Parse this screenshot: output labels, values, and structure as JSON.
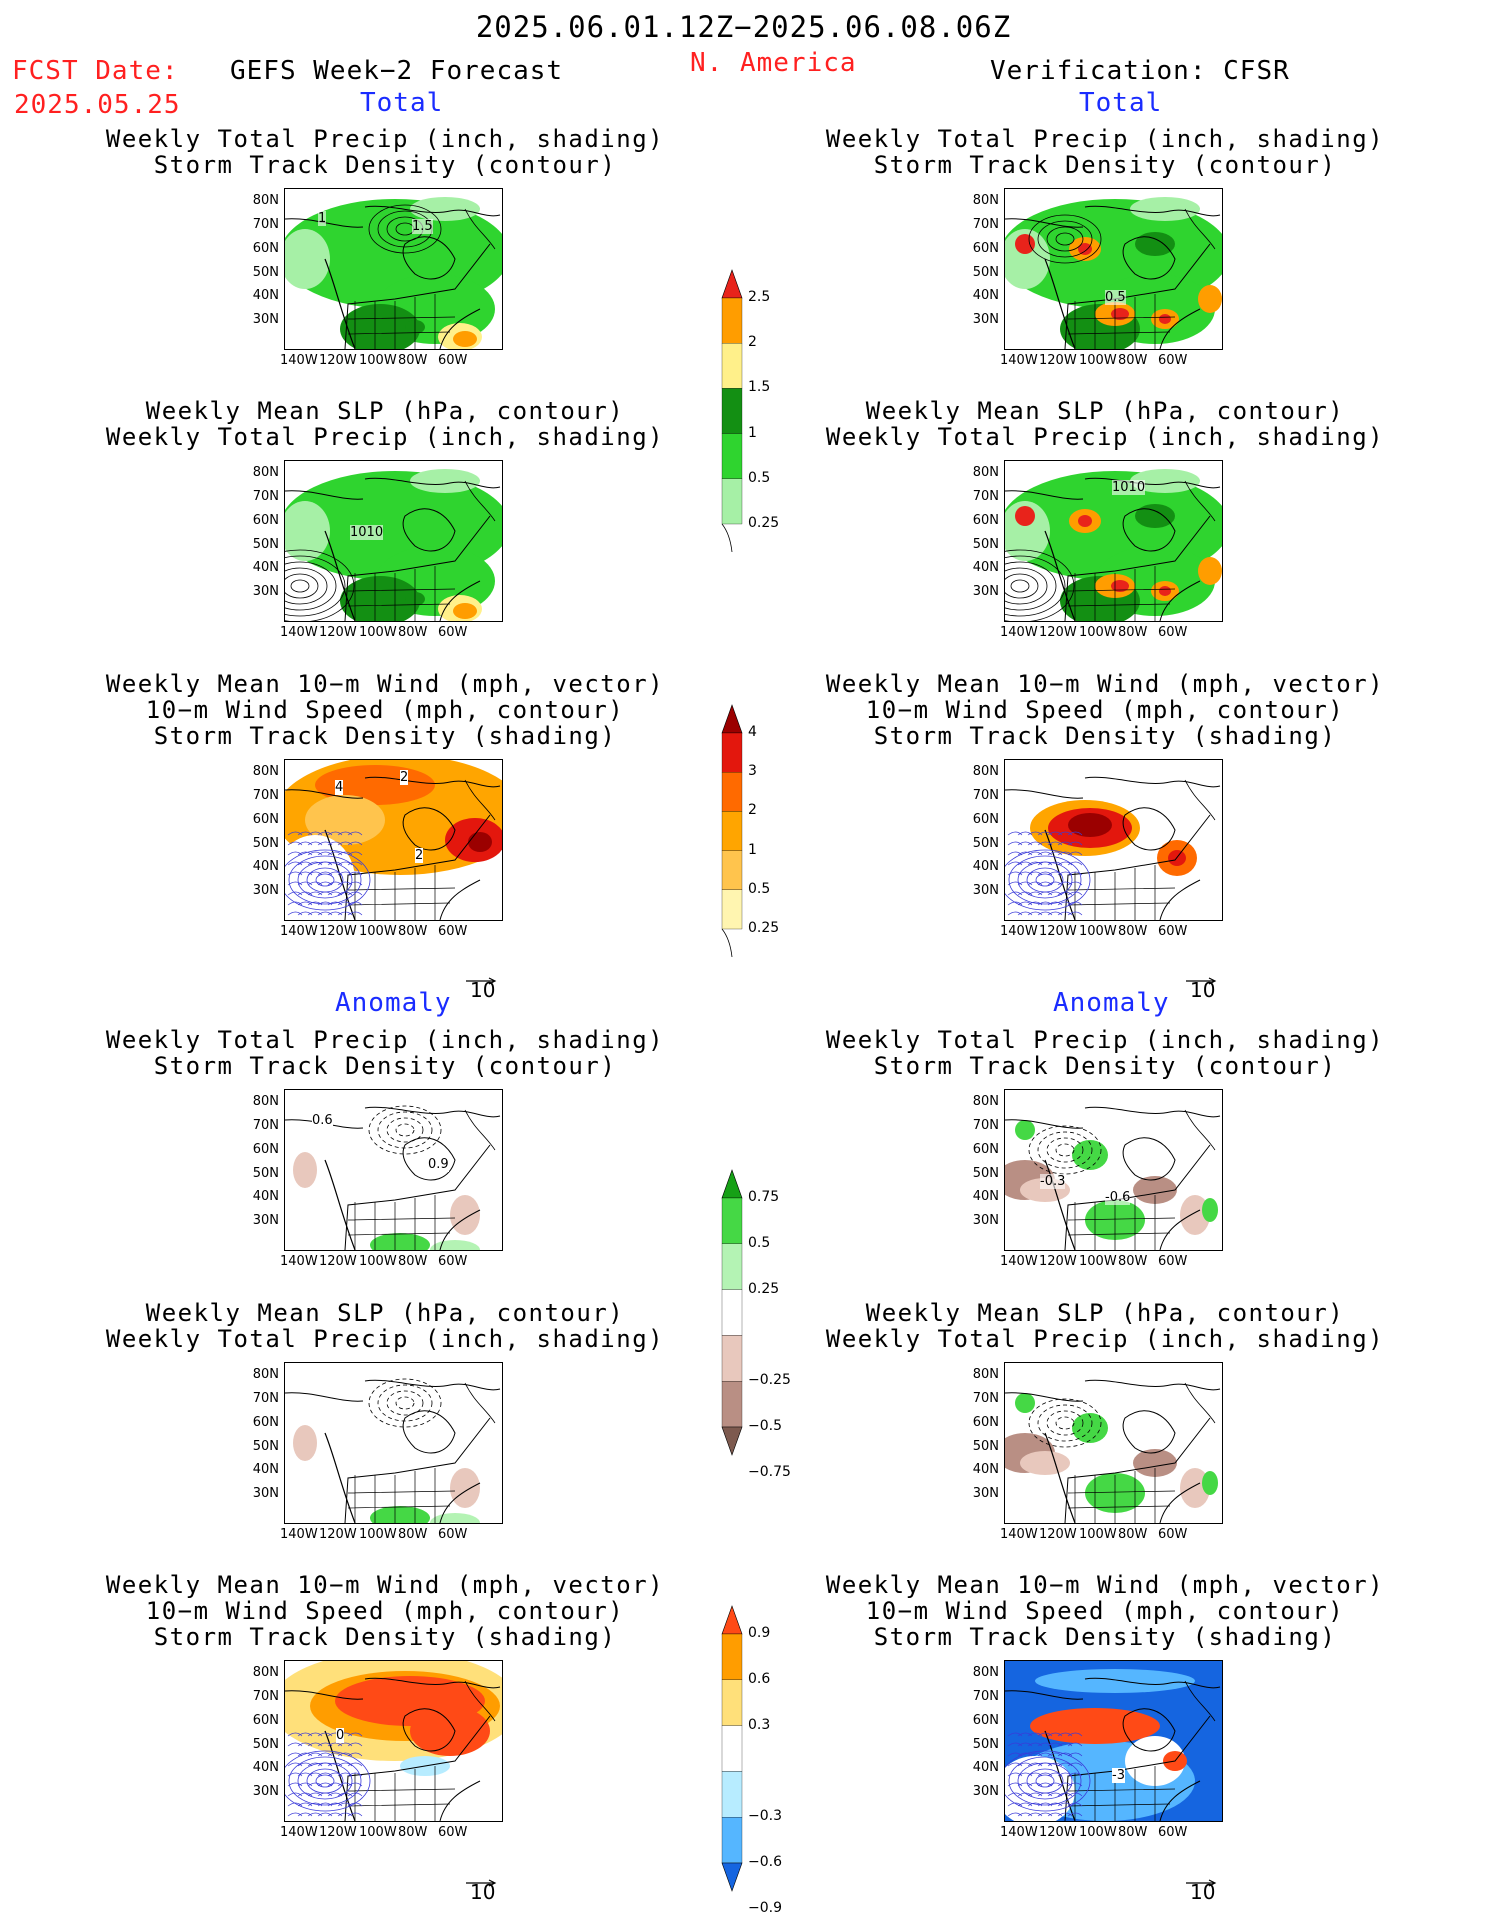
{
  "header": {
    "date_range": "2025.06.01.12Z−2025.06.08.06Z",
    "fcst_label": "FCST Date:",
    "fcst_date": "2025.05.25",
    "left_title": "GEFS Week−2 Forecast",
    "region": "N. America",
    "right_title": "Verification: CFSR"
  },
  "sections": {
    "total": "Total",
    "anomaly": "Anomaly"
  },
  "panel_titles": {
    "precip_track": [
      "Weekly Total Precip (inch, shading)",
      "Storm Track Density (contour)"
    ],
    "slp_precip": [
      "Weekly Mean SLP (hPa, contour)",
      "Weekly Total Precip (inch, shading)"
    ],
    "wind_track": [
      "Weekly Mean 10−m Wind (mph, vector)",
      "10−m Wind Speed (mph, contour)",
      "Storm Track Density (shading)"
    ]
  },
  "map_axes": {
    "lat_labels": [
      "80N",
      "70N",
      "60N",
      "50N",
      "40N",
      "30N"
    ],
    "lon_labels": [
      "140W",
      "120W",
      "100W",
      "80W",
      "60W"
    ]
  },
  "contour_labels": {
    "fcst_precip_track": [
      "1",
      "1.5"
    ],
    "obs_precip_track": [
      "0.5"
    ],
    "fcst_slp": [
      "1010"
    ],
    "obs_slp": [
      "1010"
    ],
    "fcst_wind": [
      "4",
      "2",
      "2"
    ],
    "anom_fcst_precip": [
      "0.6",
      "0.9"
    ],
    "anom_obs_precip": [
      "-0.3",
      "-0.6"
    ],
    "anom_fcst_wind": [
      "0"
    ],
    "anom_obs_wind": [
      "-3"
    ]
  },
  "wind_reference": "10",
  "colorbars": {
    "precip_total": {
      "labels": [
        "2.5",
        "2",
        "1.5",
        "1",
        "0.5",
        "0.25"
      ],
      "colors": [
        "#e8231b",
        "#ff9d00",
        "#fff08a",
        "#138f13",
        "#2fd42f",
        "#a6f0a6"
      ]
    },
    "track_total": {
      "labels": [
        "4",
        "3",
        "2",
        "1",
        "0.5",
        "0.25"
      ],
      "colors": [
        "#9b0000",
        "#e3170d",
        "#ff6a00",
        "#ffa500",
        "#ffc44d",
        "#fff5b0"
      ]
    },
    "precip_anom": {
      "labels": [
        "0.75",
        "0.5",
        "0.25",
        "−0.25",
        "−0.5",
        "−0.75"
      ],
      "colors": [
        "#16a016",
        "#45d845",
        "#b4f3b4",
        "#ffffff",
        "#e8c8bd",
        "#b98f84",
        "#7d5a4f"
      ]
    },
    "track_anom": {
      "labels": [
        "0.9",
        "0.6",
        "0.3",
        "−0.3",
        "−0.6",
        "−0.9"
      ],
      "colors": [
        "#ff4a16",
        "#ff9d00",
        "#ffe07a",
        "#ffffff",
        "#b7ecff",
        "#55b6ff",
        "#1565e0"
      ]
    }
  }
}
